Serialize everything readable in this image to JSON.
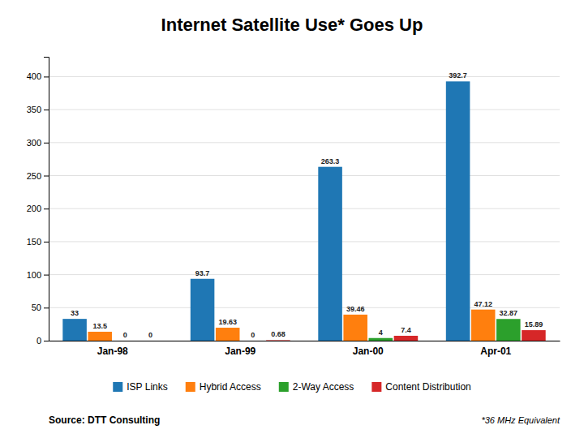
{
  "chart_data": {
    "type": "bar",
    "title": "Internet Satellite Use* Goes Up",
    "source": "Source: DTT Consulting",
    "footnote": "*36 MHz Equivalent",
    "categories": [
      "Jan-98",
      "Jan-99",
      "Jan-00",
      "Apr-01"
    ],
    "series": [
      {
        "name": "ISP Links",
        "values": [
          33,
          93.7,
          263.3,
          392.7
        ]
      },
      {
        "name": "Hybrid Access",
        "values": [
          13.5,
          19.63,
          39.46,
          47.12
        ]
      },
      {
        "name": "2-Way Access",
        "values": [
          0,
          0,
          4,
          32.87
        ]
      },
      {
        "name": "Content Distribution",
        "values": [
          0,
          0.68,
          7.4,
          15.89
        ]
      }
    ],
    "ylim": [
      0,
      430
    ],
    "yticks": [
      0,
      50,
      100,
      150,
      200,
      250,
      300,
      350,
      400
    ],
    "grid": true,
    "legend": "bottom",
    "data_labels": true
  }
}
